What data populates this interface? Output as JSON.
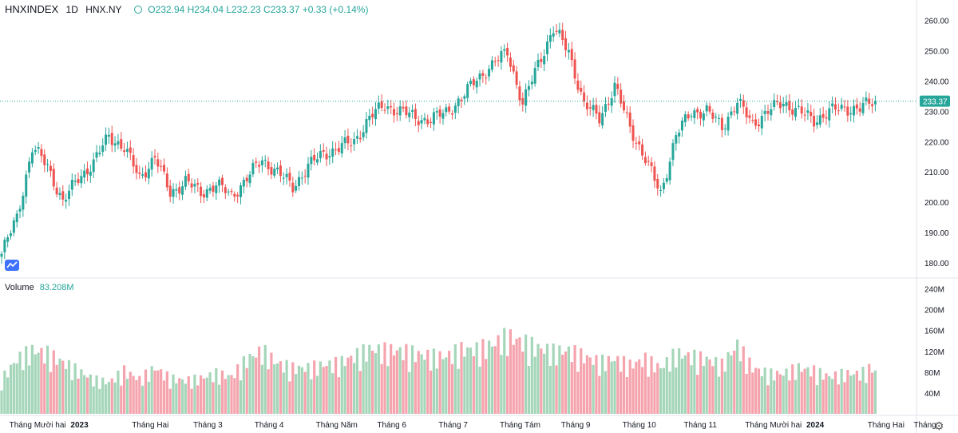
{
  "header": {
    "symbol": "HNXINDEX",
    "interval": "1D",
    "exchange": "HNX.NY",
    "ohlc": "O232.94 H234.04 L232.23 C233.37 +0.33 (+0.14%)"
  },
  "volume_legend": {
    "label": "Volume",
    "value": "83.208M"
  },
  "colors": {
    "up": "#26a69a",
    "down": "#ef5350",
    "up_vol": "#a5d6b9",
    "down_vol": "#f5a3ad",
    "last_price": "#26a69a"
  },
  "chart_data": {
    "type": "candlestick",
    "title": "HNXINDEX 1D HNX.NY",
    "price_axis": {
      "min": 175,
      "max": 262,
      "ticks": [
        "260.00",
        "250.00",
        "240.00",
        "230.00",
        "220.00",
        "210.00",
        "200.00",
        "190.00",
        "180.00"
      ],
      "tick_values": [
        260,
        250,
        240,
        230,
        220,
        210,
        200,
        190,
        180
      ]
    },
    "last_price": 233.37,
    "last_price_label": "233.37",
    "volume_axis": {
      "max_millions": 250,
      "ticks": [
        "240M",
        "200M",
        "160M",
        "120M",
        "80M",
        "40M"
      ],
      "tick_values": [
        240,
        200,
        160,
        120,
        80,
        40
      ]
    },
    "x_labels": [
      "Tháng Mười hai",
      "2023",
      "Tháng Hai",
      "Tháng 3",
      "Tháng 4",
      "Tháng Năm",
      "Tháng 6",
      "Tháng 7",
      "Tháng Tám",
      "Tháng 9",
      "Tháng 10",
      "Tháng 11",
      "Tháng Mười hai",
      "2024",
      "Tháng Hai",
      "Tháng"
    ],
    "x_label_positions": [
      0.5,
      4.5,
      8.5,
      12.5,
      16.5,
      20.5,
      24.5,
      28.5,
      32.5,
      36.5,
      40.5,
      44.5,
      48.5,
      52.5,
      56.5,
      59.5
    ],
    "close_anchors": [
      [
        0,
        183
      ],
      [
        1,
        195
      ],
      [
        2,
        218
      ],
      [
        3,
        212
      ],
      [
        4,
        200
      ],
      [
        5,
        208
      ],
      [
        6,
        213
      ],
      [
        7,
        222
      ],
      [
        8,
        218
      ],
      [
        9,
        208
      ],
      [
        10,
        215
      ],
      [
        11,
        203
      ],
      [
        12,
        207
      ],
      [
        13,
        203
      ],
      [
        14,
        206
      ],
      [
        15,
        202
      ],
      [
        16,
        208
      ],
      [
        17,
        214
      ],
      [
        18,
        210
      ],
      [
        19,
        205
      ],
      [
        20,
        212
      ],
      [
        21,
        216
      ],
      [
        22,
        218
      ],
      [
        23,
        220
      ],
      [
        24,
        228
      ],
      [
        25,
        232
      ],
      [
        26,
        230
      ],
      [
        27,
        228
      ],
      [
        28,
        227
      ],
      [
        29,
        230
      ],
      [
        30,
        234
      ],
      [
        31,
        241
      ],
      [
        32,
        245
      ],
      [
        33,
        250
      ],
      [
        34,
        232
      ],
      [
        35,
        246
      ],
      [
        36,
        257
      ],
      [
        37,
        250
      ],
      [
        38,
        232
      ],
      [
        39,
        228
      ],
      [
        40,
        238
      ],
      [
        41,
        225
      ],
      [
        42,
        214
      ],
      [
        43,
        203
      ],
      [
        44,
        222
      ],
      [
        45,
        230
      ],
      [
        46,
        230
      ],
      [
        47,
        225
      ],
      [
        48,
        233
      ],
      [
        49,
        226
      ],
      [
        50,
        230
      ],
      [
        51,
        233
      ],
      [
        52,
        230
      ],
      [
        53,
        227
      ],
      [
        54,
        230
      ],
      [
        55,
        231
      ],
      [
        56,
        231
      ],
      [
        57,
        233.37
      ]
    ],
    "volume_anchors": [
      [
        0,
        60
      ],
      [
        1,
        95
      ],
      [
        2,
        110
      ],
      [
        3,
        105
      ],
      [
        4,
        90
      ],
      [
        5,
        75
      ],
      [
        6,
        60
      ],
      [
        7,
        55
      ],
      [
        8,
        75
      ],
      [
        9,
        60
      ],
      [
        10,
        80
      ],
      [
        11,
        62
      ],
      [
        12,
        58
      ],
      [
        13,
        62
      ],
      [
        14,
        70
      ],
      [
        15,
        65
      ],
      [
        16,
        95
      ],
      [
        17,
        110
      ],
      [
        18,
        88
      ],
      [
        19,
        80
      ],
      [
        20,
        80
      ],
      [
        21,
        85
      ],
      [
        22,
        88
      ],
      [
        23,
        100
      ],
      [
        24,
        112
      ],
      [
        25,
        110
      ],
      [
        26,
        110
      ],
      [
        27,
        105
      ],
      [
        28,
        100
      ],
      [
        29,
        100
      ],
      [
        30,
        112
      ],
      [
        31,
        112
      ],
      [
        32,
        120
      ],
      [
        33,
        135
      ],
      [
        34,
        125
      ],
      [
        35,
        115
      ],
      [
        36,
        108
      ],
      [
        37,
        110
      ],
      [
        38,
        100
      ],
      [
        39,
        90
      ],
      [
        40,
        95
      ],
      [
        41,
        85
      ],
      [
        42,
        95
      ],
      [
        43,
        80
      ],
      [
        44,
        105
      ],
      [
        45,
        100
      ],
      [
        46,
        95
      ],
      [
        47,
        85
      ],
      [
        48,
        120
      ],
      [
        49,
        80
      ],
      [
        50,
        70
      ],
      [
        51,
        70
      ],
      [
        52,
        80
      ],
      [
        53,
        75
      ],
      [
        54,
        65
      ],
      [
        55,
        70
      ],
      [
        56,
        70
      ],
      [
        57,
        83.208
      ]
    ],
    "note": "Daily candles Dec 2022 to Feb 2024; price path and volumes estimated from the rendered chart (anchors in data units, interpolated per session with small oscillation)."
  }
}
